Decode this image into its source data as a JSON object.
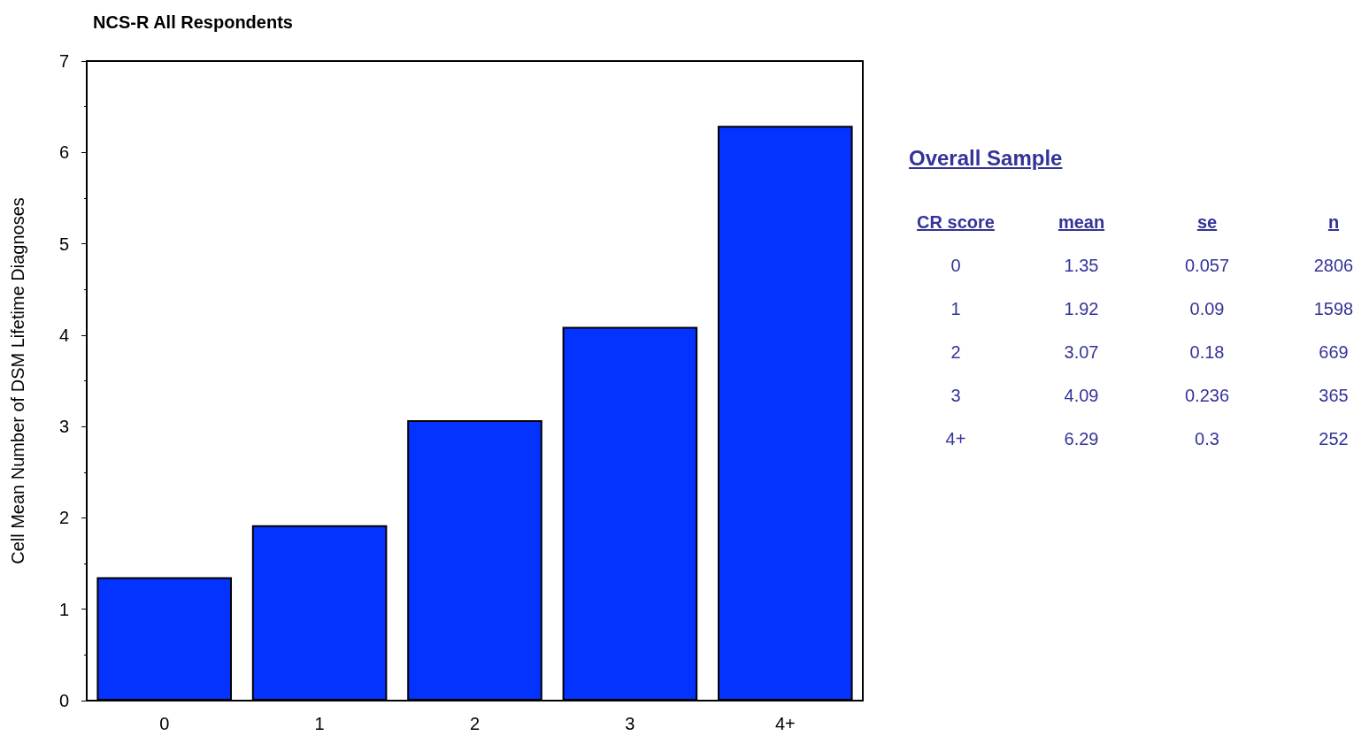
{
  "chart_data": {
    "type": "bar",
    "title": "NCS-R All Respondents",
    "ylabel": "Cell Mean Number of DSM Lifetime Diagnoses",
    "categories": [
      "0",
      "1",
      "2",
      "3",
      "4+"
    ],
    "values": [
      1.35,
      1.92,
      3.07,
      4.09,
      6.29
    ],
    "color": "#0433ff",
    "ylim": [
      0,
      7
    ],
    "yticks": [
      0,
      1,
      2,
      3,
      4,
      5,
      6,
      7
    ],
    "grid": false,
    "annotations": [
      "Overall Sample",
      "CR score",
      "mean",
      "se",
      "n",
      "1.35",
      "0.057",
      "2806",
      "1.92",
      "0.09",
      "1598",
      "3.07",
      "0.18",
      "669",
      "4.09",
      "0.236",
      "365",
      "6.29",
      "0.3",
      "252"
    ]
  }
}
